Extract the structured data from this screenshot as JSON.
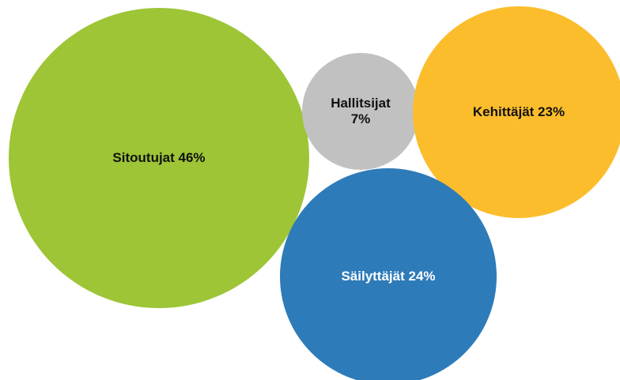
{
  "chart_data": {
    "type": "bubble",
    "categories": [
      "Sitoutujat",
      "Hallitsijat",
      "Kehittäjät",
      "Säilyttäjät"
    ],
    "values": [
      46,
      7,
      23,
      24
    ],
    "value_labels": [
      "Sitoutujat 46%",
      "Hallitsijat 7%",
      "Kehittäjät 23%",
      "Säilyttäjät 24%"
    ],
    "colors": [
      "#9dc536",
      "#c1c1c1",
      "#fbbd2c",
      "#2e7bb9"
    ]
  }
}
